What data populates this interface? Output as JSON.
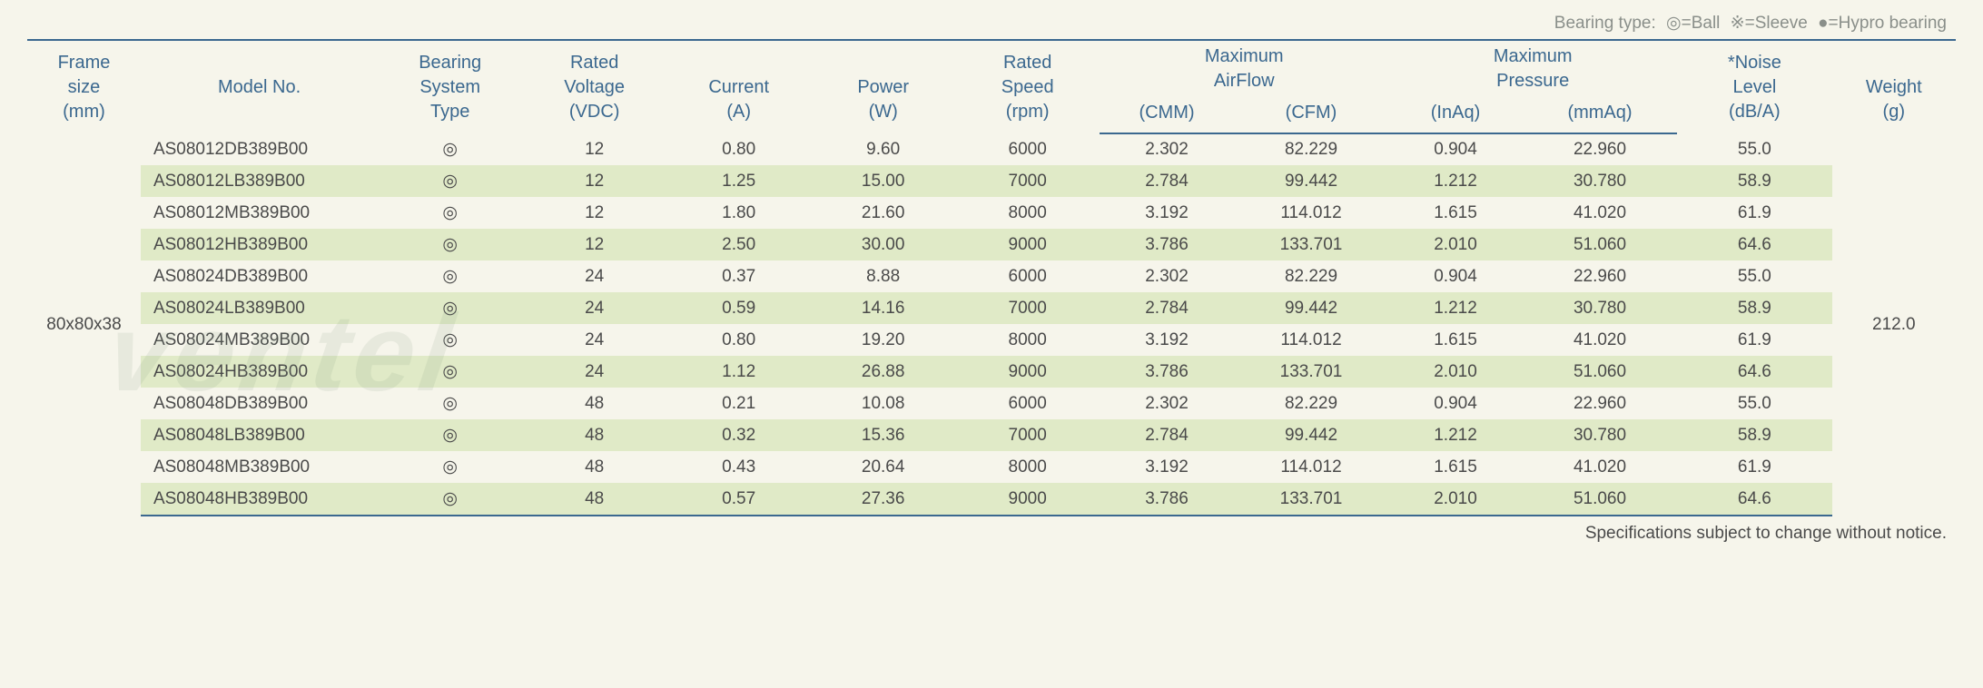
{
  "legend": {
    "prefix": "Bearing type:",
    "ball": "◎=Ball",
    "sleeve": "※=Sleeve",
    "hypro": "●=Hypro bearing"
  },
  "headers": {
    "frame": {
      "l1": "Frame",
      "l2": "size",
      "l3": "(mm)"
    },
    "model": {
      "l1": "Model No."
    },
    "bearing": {
      "l1": "Bearing",
      "l2": "System",
      "l3": "Type"
    },
    "voltage": {
      "l1": "Rated",
      "l2": "Voltage",
      "l3": "(VDC)"
    },
    "current": {
      "l1": "Current",
      "l3": "(A)"
    },
    "power": {
      "l1": "Power",
      "l3": "(W)"
    },
    "speed": {
      "l1": "Rated",
      "l2": "Speed",
      "l3": "(rpm)"
    },
    "airflow": {
      "l1": "Maximum",
      "l2": "AirFlow",
      "sub1": "(CMM)",
      "sub2": "(CFM)"
    },
    "pressure": {
      "l1": "Maximum",
      "l2": "Pressure",
      "sub1": "(InAq)",
      "sub2": "(mmAq)"
    },
    "noise": {
      "l1": "*Noise",
      "l2": "Level",
      "l3": "(dB/A)"
    },
    "weight": {
      "l1": "Weight",
      "l3": "(g)"
    }
  },
  "frame_size": "80x80x38",
  "weight": "212.0",
  "bearing_symbol": "◎",
  "rows": [
    {
      "model": "AS08012DB389B00",
      "voltage": "12",
      "current": "0.80",
      "power": "9.60",
      "speed": "6000",
      "cmm": "2.302",
      "cfm": "82.229",
      "inaq": "0.904",
      "mmaq": "22.960",
      "noise": "55.0"
    },
    {
      "model": "AS08012LB389B00",
      "voltage": "12",
      "current": "1.25",
      "power": "15.00",
      "speed": "7000",
      "cmm": "2.784",
      "cfm": "99.442",
      "inaq": "1.212",
      "mmaq": "30.780",
      "noise": "58.9"
    },
    {
      "model": "AS08012MB389B00",
      "voltage": "12",
      "current": "1.80",
      "power": "21.60",
      "speed": "8000",
      "cmm": "3.192",
      "cfm": "114.012",
      "inaq": "1.615",
      "mmaq": "41.020",
      "noise": "61.9"
    },
    {
      "model": "AS08012HB389B00",
      "voltage": "12",
      "current": "2.50",
      "power": "30.00",
      "speed": "9000",
      "cmm": "3.786",
      "cfm": "133.701",
      "inaq": "2.010",
      "mmaq": "51.060",
      "noise": "64.6"
    },
    {
      "model": "AS08024DB389B00",
      "voltage": "24",
      "current": "0.37",
      "power": "8.88",
      "speed": "6000",
      "cmm": "2.302",
      "cfm": "82.229",
      "inaq": "0.904",
      "mmaq": "22.960",
      "noise": "55.0"
    },
    {
      "model": "AS08024LB389B00",
      "voltage": "24",
      "current": "0.59",
      "power": "14.16",
      "speed": "7000",
      "cmm": "2.784",
      "cfm": "99.442",
      "inaq": "1.212",
      "mmaq": "30.780",
      "noise": "58.9"
    },
    {
      "model": "AS08024MB389B00",
      "voltage": "24",
      "current": "0.80",
      "power": "19.20",
      "speed": "8000",
      "cmm": "3.192",
      "cfm": "114.012",
      "inaq": "1.615",
      "mmaq": "41.020",
      "noise": "61.9"
    },
    {
      "model": "AS08024HB389B00",
      "voltage": "24",
      "current": "1.12",
      "power": "26.88",
      "speed": "9000",
      "cmm": "3.786",
      "cfm": "133.701",
      "inaq": "2.010",
      "mmaq": "51.060",
      "noise": "64.6"
    },
    {
      "model": "AS08048DB389B00",
      "voltage": "48",
      "current": "0.21",
      "power": "10.08",
      "speed": "6000",
      "cmm": "2.302",
      "cfm": "82.229",
      "inaq": "0.904",
      "mmaq": "22.960",
      "noise": "55.0"
    },
    {
      "model": "AS08048LB389B00",
      "voltage": "48",
      "current": "0.32",
      "power": "15.36",
      "speed": "7000",
      "cmm": "2.784",
      "cfm": "99.442",
      "inaq": "1.212",
      "mmaq": "30.780",
      "noise": "58.9"
    },
    {
      "model": "AS08048MB389B00",
      "voltage": "48",
      "current": "0.43",
      "power": "20.64",
      "speed": "8000",
      "cmm": "3.192",
      "cfm": "114.012",
      "inaq": "1.615",
      "mmaq": "41.020",
      "noise": "61.9"
    },
    {
      "model": "AS08048HB389B00",
      "voltage": "48",
      "current": "0.57",
      "power": "27.36",
      "speed": "9000",
      "cmm": "3.786",
      "cfm": "133.701",
      "inaq": "2.010",
      "mmaq": "51.060",
      "noise": "64.6"
    }
  ],
  "footnote": "Specifications subject to change without notice.",
  "colors": {
    "header_text": "#3b688f",
    "body_text": "#4a4a4a",
    "legend_text": "#8a8f8a",
    "row_alt_bg": "#e0eac7",
    "page_bg": "#f6f5eb",
    "border": "#3b688f"
  },
  "font": {
    "family": "Arial",
    "header_size_pt": 15,
    "body_size_pt": 14
  }
}
